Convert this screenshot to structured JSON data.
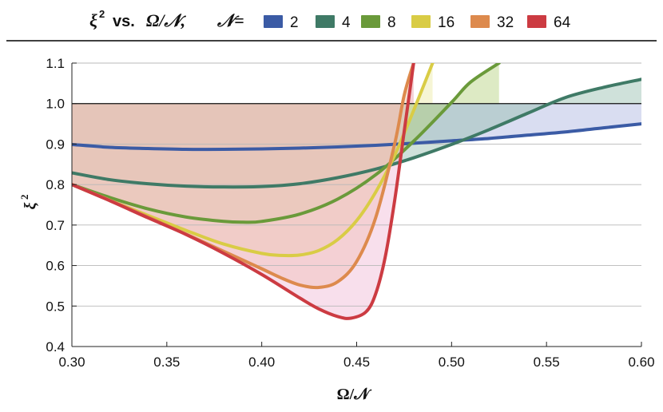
{
  "chart_data": {
    "type": "line",
    "title": "ξ² vs. Ω/𝒩,",
    "title_parts": {
      "symbol": "ξ",
      "sup": "2",
      "mid": "vs.",
      "var": "Ω/𝒩,"
    },
    "legend_title": "𝒩=",
    "xlabel": "Ω/𝒩",
    "ylabel": "ξ",
    "ylabel_sup": "2",
    "xlim": [
      0.3,
      0.6
    ],
    "ylim": [
      0.4,
      1.1
    ],
    "xticks": [
      "0.30",
      "0.35",
      "0.40",
      "0.45",
      "0.50",
      "0.55",
      "0.60"
    ],
    "yticks": [
      "0.4",
      "0.5",
      "0.6",
      "0.7",
      "0.8",
      "0.9",
      "1.0",
      "1.1"
    ],
    "reference_line": 1.0,
    "grid": "horizontal",
    "series": [
      {
        "name": "2",
        "color": "#3b5ba5",
        "fill": "#aab4df",
        "x": [
          0.3,
          0.32,
          0.34,
          0.36,
          0.38,
          0.4,
          0.42,
          0.44,
          0.46,
          0.48,
          0.5,
          0.52,
          0.54,
          0.56,
          0.58,
          0.6
        ],
        "y": [
          0.899,
          0.892,
          0.889,
          0.887,
          0.887,
          0.888,
          0.89,
          0.893,
          0.897,
          0.902,
          0.908,
          0.914,
          0.922,
          0.93,
          0.94,
          0.95
        ]
      },
      {
        "name": "4",
        "color": "#3f7a66",
        "fill": "#95bcae",
        "x": [
          0.3,
          0.32,
          0.34,
          0.36,
          0.38,
          0.4,
          0.42,
          0.44,
          0.46,
          0.48,
          0.5,
          0.52,
          0.54,
          0.56,
          0.58,
          0.6
        ],
        "y": [
          0.829,
          0.812,
          0.802,
          0.796,
          0.794,
          0.795,
          0.802,
          0.817,
          0.838,
          0.866,
          0.899,
          0.936,
          0.976,
          1.015,
          1.04,
          1.06
        ]
      },
      {
        "name": "8",
        "color": "#6a9a3a",
        "fill": "#b3d17c",
        "x": [
          0.3,
          0.32,
          0.34,
          0.36,
          0.38,
          0.39,
          0.4,
          0.42,
          0.44,
          0.46,
          0.48,
          0.5,
          0.51,
          0.525
        ],
        "y": [
          0.8,
          0.768,
          0.74,
          0.72,
          0.709,
          0.707,
          0.709,
          0.727,
          0.764,
          0.824,
          0.907,
          1.003,
          1.053,
          1.1
        ]
      },
      {
        "name": "16",
        "color": "#d9cc45",
        "fill": "#ece9a2",
        "x": [
          0.3,
          0.32,
          0.34,
          0.36,
          0.38,
          0.4,
          0.41,
          0.42,
          0.43,
          0.44,
          0.45,
          0.46,
          0.47,
          0.48,
          0.49
        ],
        "y": [
          0.8,
          0.761,
          0.724,
          0.687,
          0.653,
          0.63,
          0.625,
          0.626,
          0.637,
          0.664,
          0.711,
          0.781,
          0.872,
          0.983,
          1.1
        ]
      },
      {
        "name": "32",
        "color": "#dd8a4d",
        "fill": "#eec0a0",
        "x": [
          0.3,
          0.32,
          0.34,
          0.36,
          0.38,
          0.4,
          0.41,
          0.42,
          0.43,
          0.44,
          0.45,
          0.46,
          0.47,
          0.475,
          0.48
        ],
        "y": [
          0.8,
          0.761,
          0.72,
          0.678,
          0.635,
          0.592,
          0.57,
          0.552,
          0.546,
          0.56,
          0.61,
          0.718,
          0.9,
          1.02,
          1.1
        ]
      },
      {
        "name": "64",
        "color": "#cc3b42",
        "fill": "#f0b8d5",
        "x": [
          0.3,
          0.32,
          0.34,
          0.36,
          0.38,
          0.4,
          0.42,
          0.43,
          0.44,
          0.447,
          0.455,
          0.46,
          0.465,
          0.47,
          0.475,
          0.48
        ],
        "y": [
          0.8,
          0.76,
          0.718,
          0.677,
          0.63,
          0.578,
          0.52,
          0.493,
          0.474,
          0.47,
          0.486,
          0.53,
          0.62,
          0.76,
          0.93,
          1.1
        ]
      }
    ]
  }
}
